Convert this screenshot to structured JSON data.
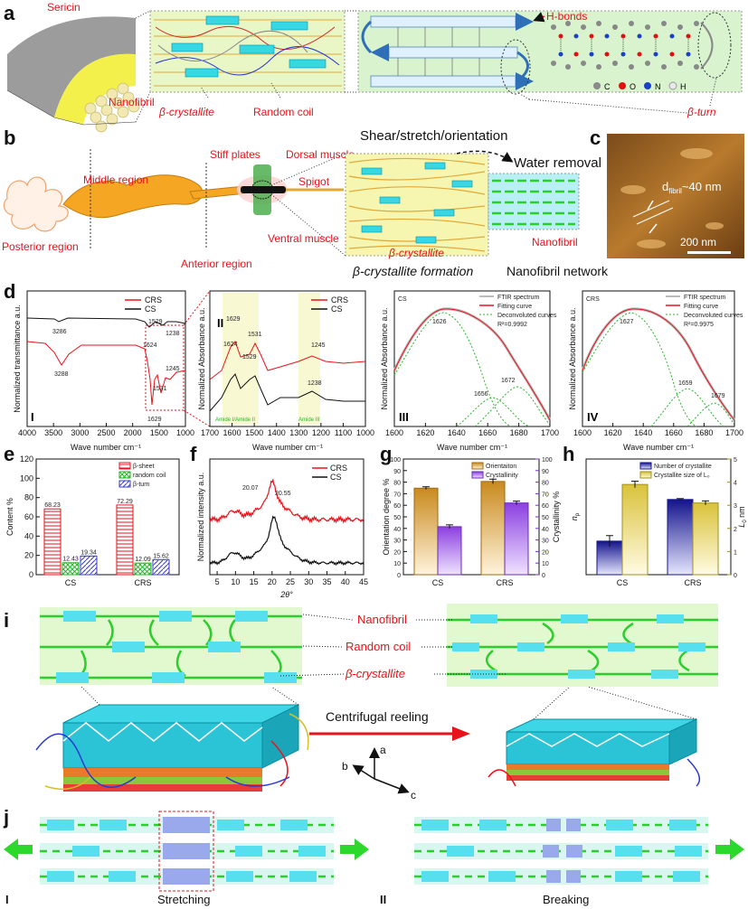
{
  "panels": {
    "a": {
      "letter": "a",
      "sericin": "Sericin",
      "nanofibril": "Nanofibril",
      "beta_crystallite": "β-crystallite",
      "random_coil": "Random coil",
      "h_bonds": "H-bonds",
      "beta_turn": "β-turn",
      "atoms": [
        "C",
        "O",
        "N",
        "H"
      ],
      "atom_colors": [
        "#8a8a8a",
        "#e01010",
        "#1a3fc8",
        "#e8e8e8"
      ]
    },
    "b": {
      "letter": "b",
      "posterior": "Posterior region",
      "middle": "Middle region",
      "anterior": "Anterior region",
      "stiff_plates": "Stiff plates",
      "dorsal": "Dorsal muscle",
      "ventral": "Ventral muscle",
      "spigot": "Spigot",
      "shear": "Shear/stretch/orientation",
      "water": "Water removal",
      "beta_crystallite": "β-crystallite",
      "nanofibril": "Nanofibril",
      "formation": "β-crystallite formation",
      "network": "Nanofibril network"
    },
    "c": {
      "letter": "c",
      "dfibril_d": "d",
      "dfibril_sub": "fibril",
      "dfibril_val": "~40 nm",
      "scale": "200 nm"
    },
    "d": {
      "letter": "d",
      "sub": {
        "I": {
          "roman": "I",
          "ylabel": "Normalized transmittance a.u.",
          "xlabel": "Wave number cm⁻¹",
          "xticks": [
            "4000",
            "3500",
            "3000",
            "2500",
            "2000",
            "1500",
            "1000"
          ],
          "legend": [
            "CRS",
            "CS"
          ],
          "annotations": [
            "3286",
            "3288",
            "1529",
            "1624",
            "1238",
            "1245",
            "1531",
            "1629"
          ]
        },
        "II": {
          "roman": "II",
          "ylabel": "Normalized Absorbance a.u.",
          "xlabel": "Wave number cm⁻¹",
          "xticks": [
            "1700",
            "1600",
            "1500",
            "1400",
            "1300",
            "1200",
            "1100",
            "1000"
          ],
          "legend": [
            "CRS",
            "CS"
          ],
          "annotations": [
            "1629",
            "1531",
            "1624",
            "1529",
            "1245",
            "1238"
          ],
          "band1": "Amide I",
          "band2": "Amide II",
          "band3": "Amide III"
        },
        "III": {
          "roman": "III",
          "sample": "CS",
          "ylabel": "Normalized Absorbance a.u.",
          "xlabel": "Wave number cm⁻¹",
          "xticks": [
            "1600",
            "1620",
            "1640",
            "1660",
            "1680",
            "1700"
          ],
          "legend": [
            "FTIR spectrum",
            "Fitting curve",
            "Deconvoluted curves"
          ],
          "r2": "R²=0.9992",
          "peaks": [
            "1626",
            "1656",
            "1672"
          ]
        },
        "IV": {
          "roman": "IV",
          "sample": "CRS",
          "ylabel": "Normalized Absorbance a.u.",
          "xlabel": "Wave number cm⁻¹",
          "xticks": [
            "1600",
            "1620",
            "1640",
            "1660",
            "1680",
            "1700"
          ],
          "legend": [
            "FTIR spectrum",
            "Fitting curve",
            "Deconvoluted curves"
          ],
          "r2": "R²=0.9975",
          "peaks": [
            "1627",
            "1659",
            "1679"
          ]
        }
      }
    },
    "e": {
      "letter": "e",
      "ylabel": "Content %",
      "yticks": [
        "0",
        "20",
        "40",
        "60",
        "80",
        "100",
        "120"
      ],
      "legend": [
        "β-sheet",
        "random coil",
        "β-turn"
      ],
      "value_labels": {
        "CS": [
          "68.23",
          "12.43",
          "19.34"
        ],
        "CRS": [
          "72.29",
          "12.09",
          "15.62"
        ]
      }
    },
    "f": {
      "letter": "f",
      "ylabel": "Normalized intensity a.u.",
      "xlabel": "2θ°",
      "xticks": [
        "5",
        "10",
        "15",
        "20",
        "25",
        "30",
        "35",
        "40",
        "45"
      ],
      "legend": [
        "CRS",
        "CS"
      ],
      "peak_crs": "20.07",
      "peak_cs": "20.55"
    },
    "g": {
      "letter": "g",
      "ylabel_left": "Orientation degree %",
      "ylabel_right": "Crystallinity %",
      "yticks_left": [
        "0",
        "10",
        "20",
        "30",
        "40",
        "50",
        "60",
        "70",
        "80",
        "90",
        "100"
      ],
      "yticks_right": [
        "0",
        "10",
        "20",
        "30",
        "40",
        "50",
        "60",
        "70",
        "80",
        "90",
        "100"
      ],
      "legend": [
        "Orientaiton",
        "Crystallinity"
      ]
    },
    "h": {
      "letter": "h",
      "ylabel_left": "n",
      "ylabel_left_sub": "p",
      "ylabel_right": "L",
      "ylabel_right_sub": "0",
      "ylabel_right_unit": " nm",
      "yticks_right": [
        "0",
        "1",
        "2",
        "3",
        "4",
        "5"
      ],
      "legend": [
        "Number of crystallite",
        "Crystallite size of L₀"
      ]
    },
    "i": {
      "letter": "i",
      "nanofibril": "Nanofibril",
      "random_coil": "Random coil",
      "beta_crystallite": "β-crystallite",
      "reeling": "Centrifugal reeling",
      "axes": [
        "a",
        "b",
        "c"
      ]
    },
    "j": {
      "letter": "j",
      "roman1": "I",
      "roman2": "II",
      "stretching": "Stretching",
      "breaking": "Breaking"
    }
  },
  "chart_data": [
    {
      "type": "bar",
      "panel": "e",
      "categories": [
        "CS",
        "CRS"
      ],
      "series": [
        {
          "name": "β-sheet",
          "values": [
            68.23,
            72.29
          ]
        },
        {
          "name": "random coil",
          "values": [
            12.43,
            12.09
          ]
        },
        {
          "name": "β-turn",
          "values": [
            19.34,
            15.62
          ]
        }
      ],
      "ylabel": "Content %",
      "ylim": [
        0,
        120
      ]
    },
    {
      "type": "line",
      "panel": "f",
      "xlabel": "2θ°",
      "ylabel": "Normalized intensity a.u.",
      "xlim": [
        3,
        45
      ],
      "series": [
        {
          "name": "CRS",
          "peak": 20.07
        },
        {
          "name": "CS",
          "peak": 20.55
        }
      ]
    },
    {
      "type": "bar",
      "panel": "g",
      "categories": [
        "CS",
        "CRS"
      ],
      "series": [
        {
          "name": "Orientaiton",
          "axis": "left",
          "values": [
            74.8,
            80.6
          ],
          "errors": [
            0.4,
            1.2
          ]
        },
        {
          "name": "Crystallinity",
          "axis": "right",
          "values": [
            41.5,
            62.0
          ],
          "errors": [
            0.8,
            0.8
          ]
        }
      ],
      "ylim_left": [
        0,
        100
      ],
      "ylim_right": [
        0,
        100
      ]
    },
    {
      "type": "bar",
      "panel": "h",
      "categories": [
        "CS",
        "CRS"
      ],
      "series": [
        {
          "name": "Number of crystallite",
          "axis": "left",
          "values": [
            0.29,
            0.65
          ],
          "errors": [
            0.04,
            0.0
          ]
        },
        {
          "name": "Crystallite size of L₀",
          "axis": "right",
          "values": [
            3.9,
            3.1
          ],
          "errors": [
            0.1,
            0.05
          ]
        }
      ],
      "ylim_right": [
        0,
        5
      ]
    }
  ]
}
